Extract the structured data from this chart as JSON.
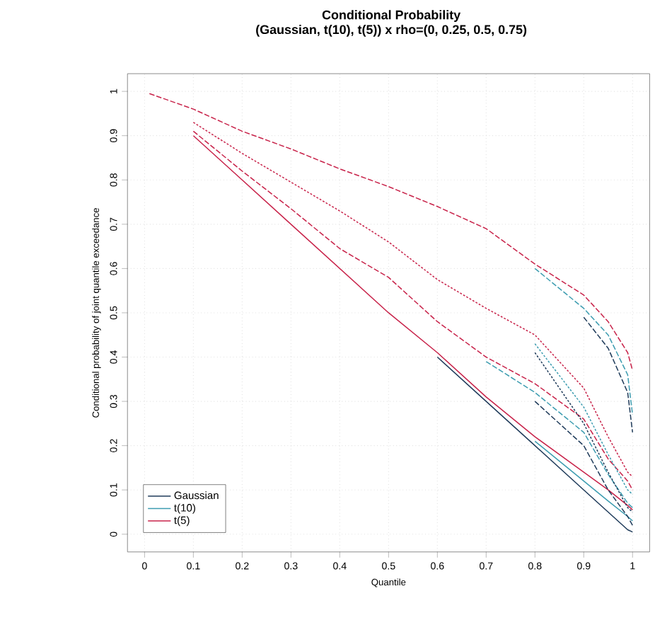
{
  "chart_data": {
    "type": "line",
    "title": "Conditional Probability",
    "subtitle": "(Gaussian, t(10), t(5)) x rho=(0, 0.25, 0.5, 0.75)",
    "xlabel": "Quantile",
    "ylabel": "Conditional probability of joint quantile exceedance",
    "x": [
      0.01,
      0.1,
      0.2,
      0.3,
      0.4,
      0.5,
      0.6,
      0.7,
      0.8,
      0.9,
      0.95,
      0.99,
      1
    ],
    "series": [
      {
        "name": "Gaussian",
        "color": "#1f3b5a",
        "line_style": "solid",
        "values": [
          null,
          null,
          null,
          null,
          null,
          null,
          0.4,
          0.3,
          0.2,
          0.1,
          0.05,
          0.01,
          0.005
        ]
      },
      {
        "name": "t(10)",
        "color": "#3c9cb0",
        "line_style": "solid",
        "values": [
          null,
          null,
          null,
          null,
          null,
          null,
          null,
          null,
          0.21,
          0.12,
          0.075,
          0.04,
          0.03
        ]
      },
      {
        "name": "t(5)",
        "color": "#c8234a",
        "line_style": "solid",
        "values": [
          null,
          0.9,
          0.8,
          0.7,
          0.6,
          0.5,
          0.41,
          0.31,
          0.22,
          0.14,
          0.1,
          0.065,
          0.055
        ]
      },
      {
        "color": "#1f3b5a",
        "line_style": "dashed",
        "values": [
          null,
          null,
          null,
          null,
          null,
          null,
          null,
          null,
          0.3,
          0.2,
          0.1,
          0.04,
          0.02
        ]
      },
      {
        "color": "#3c9cb0",
        "line_style": "dashed",
        "values": [
          null,
          null,
          null,
          null,
          null,
          null,
          null,
          0.39,
          0.32,
          0.23,
          0.135,
          0.07,
          0.06
        ]
      },
      {
        "color": "#c8234a",
        "line_style": "dashed",
        "values": [
          null,
          0.91,
          0.82,
          0.735,
          0.645,
          0.58,
          0.48,
          0.4,
          0.34,
          0.26,
          0.17,
          0.12,
          0.1
        ]
      },
      {
        "color": "#1f3b5a",
        "line_style": "dotted",
        "values": [
          null,
          null,
          null,
          null,
          null,
          null,
          null,
          null,
          0.41,
          0.25,
          0.14,
          0.06,
          0.05
        ]
      },
      {
        "color": "#3c9cb0",
        "line_style": "dotted",
        "values": [
          null,
          null,
          null,
          null,
          null,
          null,
          null,
          null,
          0.43,
          0.287,
          0.18,
          0.1,
          0.09
        ]
      },
      {
        "color": "#c8234a",
        "line_style": "dotted",
        "values": [
          null,
          0.93,
          0.86,
          0.795,
          0.73,
          0.66,
          0.575,
          0.51,
          0.45,
          0.33,
          0.22,
          0.14,
          0.13
        ]
      },
      {
        "color": "#1f3b5a",
        "line_style": "dashed",
        "values": [
          null,
          null,
          null,
          null,
          null,
          null,
          null,
          null,
          null,
          0.49,
          0.42,
          0.32,
          0.23
        ]
      },
      {
        "color": "#3c9cb0",
        "line_style": "dashed",
        "values": [
          null,
          null,
          null,
          null,
          null,
          null,
          null,
          null,
          0.6,
          0.51,
          0.45,
          0.36,
          0.27
        ]
      },
      {
        "color": "#c8234a",
        "line_style": "dashed",
        "values": [
          0.995,
          0.96,
          0.91,
          0.87,
          0.825,
          0.785,
          0.74,
          0.69,
          0.61,
          0.54,
          0.48,
          0.41,
          0.37
        ]
      }
    ],
    "xlim": [
      -0.035,
      1.035
    ],
    "ylim": [
      -0.04,
      1.04
    ],
    "xticks": [
      0,
      0.1,
      0.2,
      0.3,
      0.4,
      0.5,
      0.6,
      0.7,
      0.8,
      0.9,
      1
    ],
    "yticks": [
      0,
      0.1,
      0.2,
      0.3,
      0.4,
      0.5,
      0.6,
      0.7,
      0.8,
      0.9,
      1
    ],
    "grid": true,
    "legend": "bottom left"
  }
}
